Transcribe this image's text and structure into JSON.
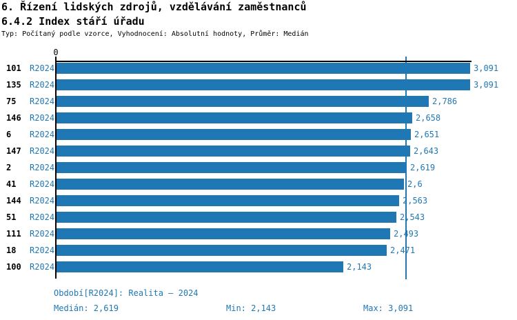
{
  "colors": {
    "accent": "#1f77b4",
    "axis": "#000000",
    "background": "#ffffff"
  },
  "header": {
    "title_line1": "6. Řízení lidských zdrojů, vzdělávání zaměstnanců",
    "title_line2": "6.4.2 Index stáří úřadu",
    "subtitle": "Typ: Počítaný podle vzorce, Vyhodnocení: Absolutní hodnoty, Průměr: Medián"
  },
  "chart_data": {
    "type": "bar",
    "orientation": "horizontal",
    "title": "6.4.2 Index stáří úřadu",
    "categories": [
      "101",
      "135",
      "75",
      "146",
      "6",
      "147",
      "2",
      "41",
      "144",
      "51",
      "111",
      "18",
      "100"
    ],
    "series": [
      {
        "name": "R2024",
        "values": [
          3.091,
          3.091,
          2.786,
          2.658,
          2.651,
          2.643,
          2.619,
          2.6,
          2.563,
          2.543,
          2.493,
          2.471,
          2.143
        ],
        "value_labels": [
          "3,091",
          "3,091",
          "2,786",
          "2,658",
          "2,651",
          "2,643",
          "2,619",
          "2,6",
          "2,563",
          "2,543",
          "2,493",
          "2,471",
          "2,143"
        ]
      }
    ],
    "series_tag": "R2024",
    "x_axis": {
      "origin_label": "0",
      "xlim": [
        0,
        3.103
      ],
      "grid": false
    },
    "median_reference": {
      "value": 2.619,
      "label": "Medián"
    },
    "bar_color": "#1f77b4",
    "legend_position": "bottom"
  },
  "footer": {
    "period_label": "Období[R2024]: Realita – 2024",
    "median_label": "Medián: 2,619",
    "min_label": "Min: 2,143",
    "max_label": "Max: 3,091"
  }
}
